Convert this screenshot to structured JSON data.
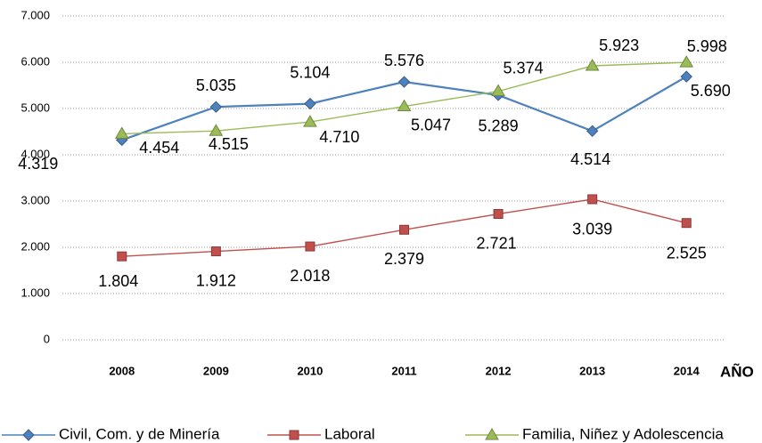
{
  "chart_data": {
    "type": "line",
    "categories": [
      "2008",
      "2009",
      "2010",
      "2011",
      "2012",
      "2013",
      "2014"
    ],
    "x_label": "AÑO",
    "series": [
      {
        "name": "Civil, Com. y de Minería",
        "color": "#4f81bd",
        "values": [
          4319,
          5035,
          5104,
          5576,
          5289,
          4514,
          5690
        ],
        "value_labels": [
          "4.319",
          "5.035",
          "5.104",
          "5.576",
          "5.289",
          "4.514",
          "5.690"
        ]
      },
      {
        "name": "Laboral",
        "color": "#c0504d",
        "values": [
          1804,
          1912,
          2018,
          2379,
          2721,
          3039,
          2525
        ],
        "value_labels": [
          "1.804",
          "1.912",
          "2.018",
          "2.379",
          "2.721",
          "3.039",
          "2.525"
        ]
      },
      {
        "name": "Familia, Niñez y Adolescencia",
        "color": "#9bbb59",
        "values": [
          4454,
          4515,
          4710,
          5047,
          5374,
          5923,
          5998
        ],
        "value_labels": [
          "4.454",
          "4.515",
          "4.710",
          "5.047",
          "5.374",
          "5.923",
          "5.998"
        ]
      }
    ],
    "ylim": [
      0,
      7000
    ],
    "yticks": [
      0,
      {
        "value": 1000,
        "label": "1.000"
      },
      {
        "value": 2000,
        "label": "2.000"
      },
      {
        "value": 3000,
        "label": "3.000"
      },
      {
        "value": 4000,
        "label": "4.000"
      },
      {
        "value": 5000,
        "label": "5.000"
      },
      {
        "value": 6000,
        "label": "6.000"
      },
      {
        "value": 7000,
        "label": "7.000"
      }
    ],
    "grid": true,
    "legend": "bottom"
  }
}
